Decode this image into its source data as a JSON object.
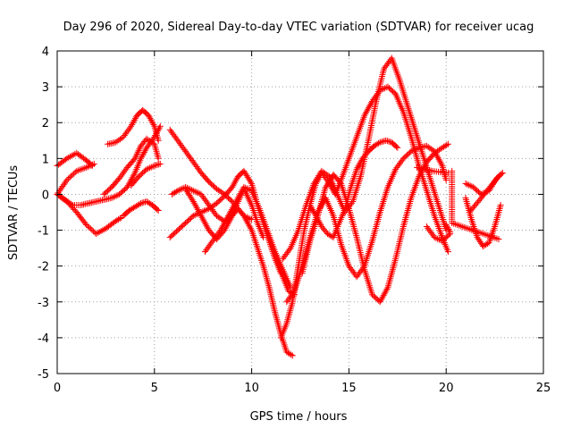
{
  "chart_data": {
    "type": "scatter",
    "title": "Day 296 of 2020, Sidereal Day-to-day VTEC variation (SDTVAR) for receiver ucag",
    "xlabel": "GPS time / hours",
    "ylabel": "SDTVAR / TECUs",
    "xlim": [
      0,
      25
    ],
    "ylim": [
      -5,
      4
    ],
    "xticks": [
      "0",
      "5",
      "10",
      "15",
      "20",
      "25"
    ],
    "yticks": [
      "-5",
      "-4",
      "-3",
      "-2",
      "-1",
      "0",
      "1",
      "2",
      "3",
      "4"
    ],
    "grid": true,
    "marker": "plus",
    "marker_color": "#ff0000",
    "series": [
      {
        "x": [
          0.0,
          0.5,
          1.0,
          1.5,
          1.8
        ],
        "y": [
          0.8,
          1.0,
          1.15,
          0.95,
          0.8
        ]
      },
      {
        "x": [
          0.0,
          0.5,
          1.0,
          1.5,
          1.9
        ],
        "y": [
          0.0,
          0.4,
          0.65,
          0.75,
          0.85
        ]
      },
      {
        "x": [
          0.0,
          0.5,
          1.0,
          1.5,
          2.0,
          2.5,
          3.0,
          3.3
        ],
        "y": [
          0.0,
          -0.2,
          -0.5,
          -0.85,
          -1.1,
          -0.95,
          -0.75,
          -0.65
        ]
      },
      {
        "x": [
          0.0,
          0.4,
          0.8,
          1.2,
          1.6,
          2.0,
          2.4,
          2.8,
          3.2,
          3.6,
          4.0,
          4.3,
          4.6,
          5.0,
          5.3
        ],
        "y": [
          0.0,
          -0.15,
          -0.3,
          -0.3,
          -0.25,
          -0.2,
          -0.15,
          -0.1,
          0.0,
          0.2,
          0.6,
          1.0,
          1.3,
          1.6,
          1.9
        ]
      },
      {
        "x": [
          2.6,
          3.0,
          3.4,
          3.8,
          4.1,
          4.4,
          4.7,
          5.0,
          5.2
        ],
        "y": [
          1.4,
          1.45,
          1.6,
          1.9,
          2.2,
          2.35,
          2.2,
          1.9,
          1.5
        ]
      },
      {
        "x": [
          2.4,
          2.8,
          3.2,
          3.6,
          4.0,
          4.3,
          4.6,
          5.0,
          5.2
        ],
        "y": [
          0.0,
          0.2,
          0.45,
          0.75,
          1.0,
          1.35,
          1.55,
          1.4,
          1.0
        ]
      },
      {
        "x": [
          3.4,
          3.7,
          4.0,
          4.3,
          4.6,
          4.9,
          5.2
        ],
        "y": [
          -0.6,
          -0.45,
          -0.35,
          -0.25,
          -0.2,
          -0.3,
          -0.45
        ]
      },
      {
        "x": [
          3.8,
          4.2,
          4.6,
          5.0,
          5.3
        ],
        "y": [
          0.25,
          0.5,
          0.7,
          0.8,
          0.85
        ]
      },
      {
        "x": [
          5.8,
          6.2,
          6.6,
          7.0,
          7.4,
          7.8,
          8.2,
          8.6,
          9.0,
          9.3,
          9.6,
          10.0
        ],
        "y": [
          1.8,
          1.5,
          1.2,
          0.9,
          0.6,
          0.35,
          0.15,
          0.0,
          -0.2,
          -0.4,
          -0.6,
          -0.7
        ]
      },
      {
        "x": [
          5.9,
          6.2,
          6.6,
          7.0,
          7.4,
          7.8,
          8.2,
          8.6,
          9.0,
          9.3,
          9.6,
          10.0,
          10.3,
          10.6,
          10.9,
          11.2,
          11.5,
          11.8,
          12.1
        ],
        "y": [
          0.0,
          0.1,
          0.2,
          0.1,
          0.0,
          -0.3,
          -0.6,
          -0.75,
          -0.6,
          -0.4,
          -0.6,
          -1.0,
          -1.5,
          -2.0,
          -2.6,
          -3.3,
          -3.9,
          -4.4,
          -4.5
        ]
      },
      {
        "x": [
          5.8,
          6.2,
          6.6,
          7.0,
          7.4,
          7.8,
          8.2,
          8.6,
          9.0,
          9.3,
          9.6,
          10.0,
          10.3,
          10.6,
          10.9,
          11.2,
          11.5
        ],
        "y": [
          -1.2,
          -1.0,
          -0.8,
          -0.6,
          -0.5,
          -0.4,
          -0.25,
          -0.05,
          0.2,
          0.5,
          0.65,
          0.3,
          -0.3,
          -0.8,
          -1.3,
          -1.8,
          -2.2
        ]
      },
      {
        "x": [
          6.6,
          7.0,
          7.4,
          7.8,
          8.2,
          8.6,
          9.0,
          9.3,
          9.6,
          10.0,
          10.3,
          10.6
        ],
        "y": [
          0.15,
          -0.2,
          -0.6,
          -1.0,
          -1.25,
          -1.0,
          -0.6,
          -0.2,
          0.15,
          -0.3,
          -0.8,
          -1.2
        ]
      },
      {
        "x": [
          7.6,
          8.0,
          8.4,
          8.8,
          9.2,
          9.6,
          10.0,
          10.4,
          10.8,
          11.2,
          11.6,
          12.0
        ],
        "y": [
          -1.6,
          -1.3,
          -1.0,
          -0.6,
          -0.2,
          0.2,
          0.1,
          -0.4,
          -1.0,
          -1.6,
          -2.1,
          -2.6
        ]
      },
      {
        "x": [
          10.3,
          10.7,
          11.0,
          11.3,
          11.6,
          11.9,
          12.2
        ],
        "y": [
          -0.3,
          -0.9,
          -1.4,
          -1.8,
          -2.3,
          -2.7,
          -2.8
        ]
      },
      {
        "x": [
          11.5,
          11.8,
          12.1,
          12.4,
          12.7,
          13.0,
          13.3,
          13.6,
          14.0,
          14.3,
          14.6,
          15.0,
          15.4,
          15.8,
          16.2,
          16.6,
          17.0,
          17.4,
          17.8,
          18.2,
          18.6,
          19.0,
          19.4,
          19.8,
          20.1
        ],
        "y": [
          -4.0,
          -3.6,
          -3.0,
          -2.0,
          -1.0,
          -0.3,
          0.3,
          0.6,
          0.3,
          0.0,
          0.4,
          1.0,
          1.6,
          2.2,
          2.6,
          2.9,
          3.0,
          2.8,
          2.3,
          1.6,
          0.8,
          0.1,
          -0.6,
          -1.2,
          -1.6
        ]
      },
      {
        "x": [
          11.6,
          12.0,
          12.4,
          12.8,
          13.2,
          13.6,
          14.0,
          14.4,
          14.8,
          15.2,
          15.6,
          16.0,
          16.4,
          16.8,
          17.2,
          17.6,
          18.0,
          18.4,
          18.8,
          19.2,
          19.6,
          20.0
        ],
        "y": [
          -1.8,
          -1.5,
          -1.0,
          -0.3,
          0.3,
          0.65,
          0.5,
          0.0,
          -0.5,
          -0.2,
          0.5,
          1.5,
          2.6,
          3.5,
          3.8,
          3.2,
          2.5,
          1.8,
          1.1,
          0.4,
          -0.3,
          -1.0
        ]
      },
      {
        "x": [
          11.8,
          12.2,
          12.6,
          13.0,
          13.4,
          13.8,
          14.2,
          14.6,
          15.0,
          15.4,
          15.8,
          16.2,
          16.6,
          17.0,
          17.4,
          17.8,
          18.2,
          18.6,
          19.0,
          19.4,
          19.8,
          20.0
        ],
        "y": [
          -3.0,
          -2.7,
          -2.0,
          -1.2,
          -0.5,
          -0.1,
          -0.6,
          -1.4,
          -2.0,
          -2.3,
          -2.0,
          -1.3,
          -0.5,
          0.2,
          0.7,
          1.0,
          1.2,
          1.3,
          1.35,
          1.2,
          0.8,
          0.4
        ]
      },
      {
        "x": [
          12.6,
          13.0,
          13.4,
          13.8,
          14.2,
          14.6,
          15.0,
          15.4,
          15.8,
          16.2,
          16.6,
          17.0,
          17.4,
          17.8,
          18.2,
          18.6,
          19.0,
          19.4,
          19.8,
          20.1
        ],
        "y": [
          -2.2,
          -1.3,
          -0.6,
          0.2,
          0.55,
          0.3,
          -0.4,
          -1.2,
          -2.1,
          -2.8,
          -3.0,
          -2.6,
          -1.8,
          -0.9,
          -0.1,
          0.5,
          0.9,
          1.15,
          1.3,
          1.4
        ]
      },
      {
        "x": [
          13.0,
          13.3,
          13.6,
          13.9,
          14.2,
          14.5,
          14.8,
          15.1,
          15.4,
          15.7,
          16.0,
          16.3,
          16.6,
          16.9,
          17.2,
          17.5
        ],
        "y": [
          -0.3,
          -0.6,
          -0.9,
          -1.1,
          -1.2,
          -0.8,
          -0.4,
          0.2,
          0.7,
          1.0,
          1.2,
          1.35,
          1.45,
          1.5,
          1.45,
          1.3
        ]
      },
      {
        "x": [
          18.5,
          18.9,
          19.3,
          19.7,
          20.1
        ],
        "y": [
          0.75,
          0.7,
          0.65,
          0.62,
          0.6
        ]
      },
      {
        "x": [
          19.0,
          19.4,
          19.8,
          20.2
        ],
        "y": [
          -0.9,
          -1.2,
          -1.3,
          -1.1
        ]
      },
      {
        "x": [
          21.0,
          21.4,
          21.8,
          22.2,
          22.6,
          22.9
        ],
        "y": [
          0.3,
          0.2,
          0.0,
          0.1,
          0.45,
          0.6
        ]
      },
      {
        "x": [
          21.0,
          21.3,
          21.6,
          21.9,
          22.2,
          22.5,
          22.8
        ],
        "y": [
          -0.1,
          -0.7,
          -1.2,
          -1.45,
          -1.35,
          -0.9,
          -0.3
        ]
      },
      {
        "x": [
          21.2,
          21.5,
          21.8,
          22.1,
          22.4,
          22.7
        ],
        "y": [
          -0.5,
          -0.3,
          -0.1,
          0.1,
          0.3,
          0.5
        ]
      },
      {
        "x": [
          20.0,
          20.2,
          20.3,
          20.3,
          20.3,
          22.7
        ],
        "y": [
          -0.85,
          -1.05,
          0.65,
          -0.05,
          -0.8,
          -1.25
        ]
      }
    ]
  }
}
